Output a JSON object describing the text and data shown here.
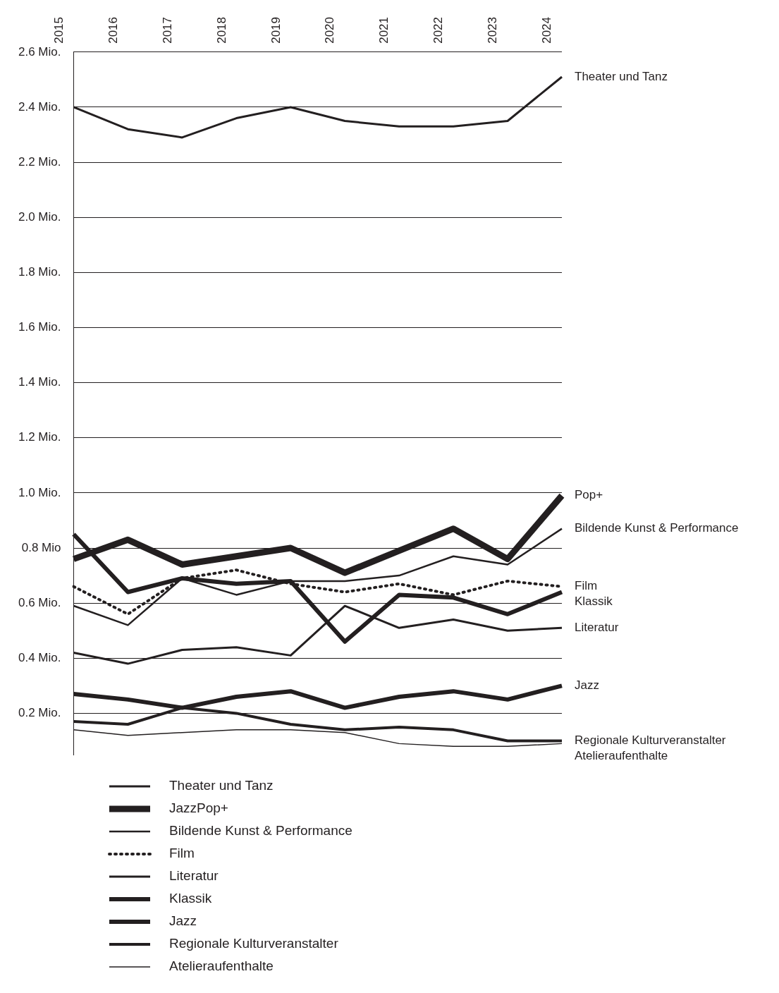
{
  "chart_data": {
    "type": "line",
    "categories": [
      "2015",
      "2016",
      "2017",
      "2018",
      "2019",
      "2020",
      "2021",
      "2022",
      "2023",
      "2024"
    ],
    "ylim": [
      0.05,
      2.6
    ],
    "yticks": [
      {
        "value": 0.2,
        "label": "0.2 Mio."
      },
      {
        "value": 0.4,
        "label": "0.4 Mio."
      },
      {
        "value": 0.6,
        "label": "0.6 Mio."
      },
      {
        "value": 0.8,
        "label": "0.8 Mio"
      },
      {
        "value": 1.0,
        "label": "1.0 Mio."
      },
      {
        "value": 1.2,
        "label": "1.2 Mio."
      },
      {
        "value": 1.4,
        "label": "1.4 Mio."
      },
      {
        "value": 1.6,
        "label": "1.6 Mio."
      },
      {
        "value": 1.8,
        "label": "1.8 Mio."
      },
      {
        "value": 2.0,
        "label": "2.0 Mio."
      },
      {
        "value": 2.2,
        "label": "2.2 Mio."
      },
      {
        "value": 2.4,
        "label": "2.4 Mio."
      },
      {
        "value": 2.6,
        "label": "2.6 Mio."
      }
    ],
    "grid": "y",
    "legend": "bottom",
    "marker": "none",
    "series": [
      {
        "name": "Theater und Tanz",
        "color": "#231f20",
        "line_style": "solid",
        "values": [
          2.4,
          2.32,
          2.29,
          2.36,
          2.4,
          2.35,
          2.33,
          2.33,
          2.35,
          2.51
        ]
      },
      {
        "name": "JazzPop+",
        "color": "#231f20",
        "line_style": "solid",
        "values": [
          0.76,
          0.83,
          0.74,
          0.77,
          0.8,
          0.71,
          0.79,
          0.87,
          0.76,
          0.99
        ]
      },
      {
        "name": "Bildende Kunst & Performance",
        "color": "#231f20",
        "line_style": "solid",
        "values": [
          0.59,
          0.52,
          0.69,
          0.63,
          0.68,
          0.68,
          0.7,
          0.77,
          0.74,
          0.87
        ]
      },
      {
        "name": "Film",
        "color": "#231f20",
        "line_style": "dotted",
        "values": [
          0.66,
          0.56,
          0.69,
          0.72,
          0.67,
          0.64,
          0.67,
          0.63,
          0.68,
          0.66
        ]
      },
      {
        "name": "Literatur",
        "color": "#231f20",
        "line_style": "solid",
        "values": [
          0.42,
          0.38,
          0.43,
          0.44,
          0.41,
          0.59,
          0.51,
          0.54,
          0.5,
          0.51
        ]
      },
      {
        "name": "Klassik",
        "color": "#231f20",
        "line_style": "solid",
        "values": [
          0.85,
          0.64,
          0.69,
          0.67,
          0.68,
          0.46,
          0.63,
          0.62,
          0.56,
          0.64
        ]
      },
      {
        "name": "Jazz",
        "color": "#231f20",
        "line_style": "solid",
        "values": [
          0.27,
          0.25,
          0.22,
          0.26,
          0.28,
          0.22,
          0.26,
          0.28,
          0.25,
          0.3
        ]
      },
      {
        "name": "Regionale Kulturveranstalter",
        "color": "#231f20",
        "line_style": "solid",
        "values": [
          0.17,
          0.16,
          0.22,
          0.2,
          0.16,
          0.14,
          0.15,
          0.14,
          0.1,
          0.1
        ]
      },
      {
        "name": "Atelieraufenthalte",
        "color": "#231f20",
        "line_style": "solid",
        "values": [
          0.14,
          0.12,
          0.13,
          0.14,
          0.14,
          0.13,
          0.09,
          0.08,
          0.08,
          0.09
        ]
      }
    ],
    "annotations": [
      "Theater und Tanz",
      "Pop+",
      "Bildende Kunst & Performance",
      "Film",
      "Literatur",
      "Klassik",
      "Jazz",
      "Regionale Kulturveranstalter",
      "Atelieraufenthalte"
    ]
  }
}
